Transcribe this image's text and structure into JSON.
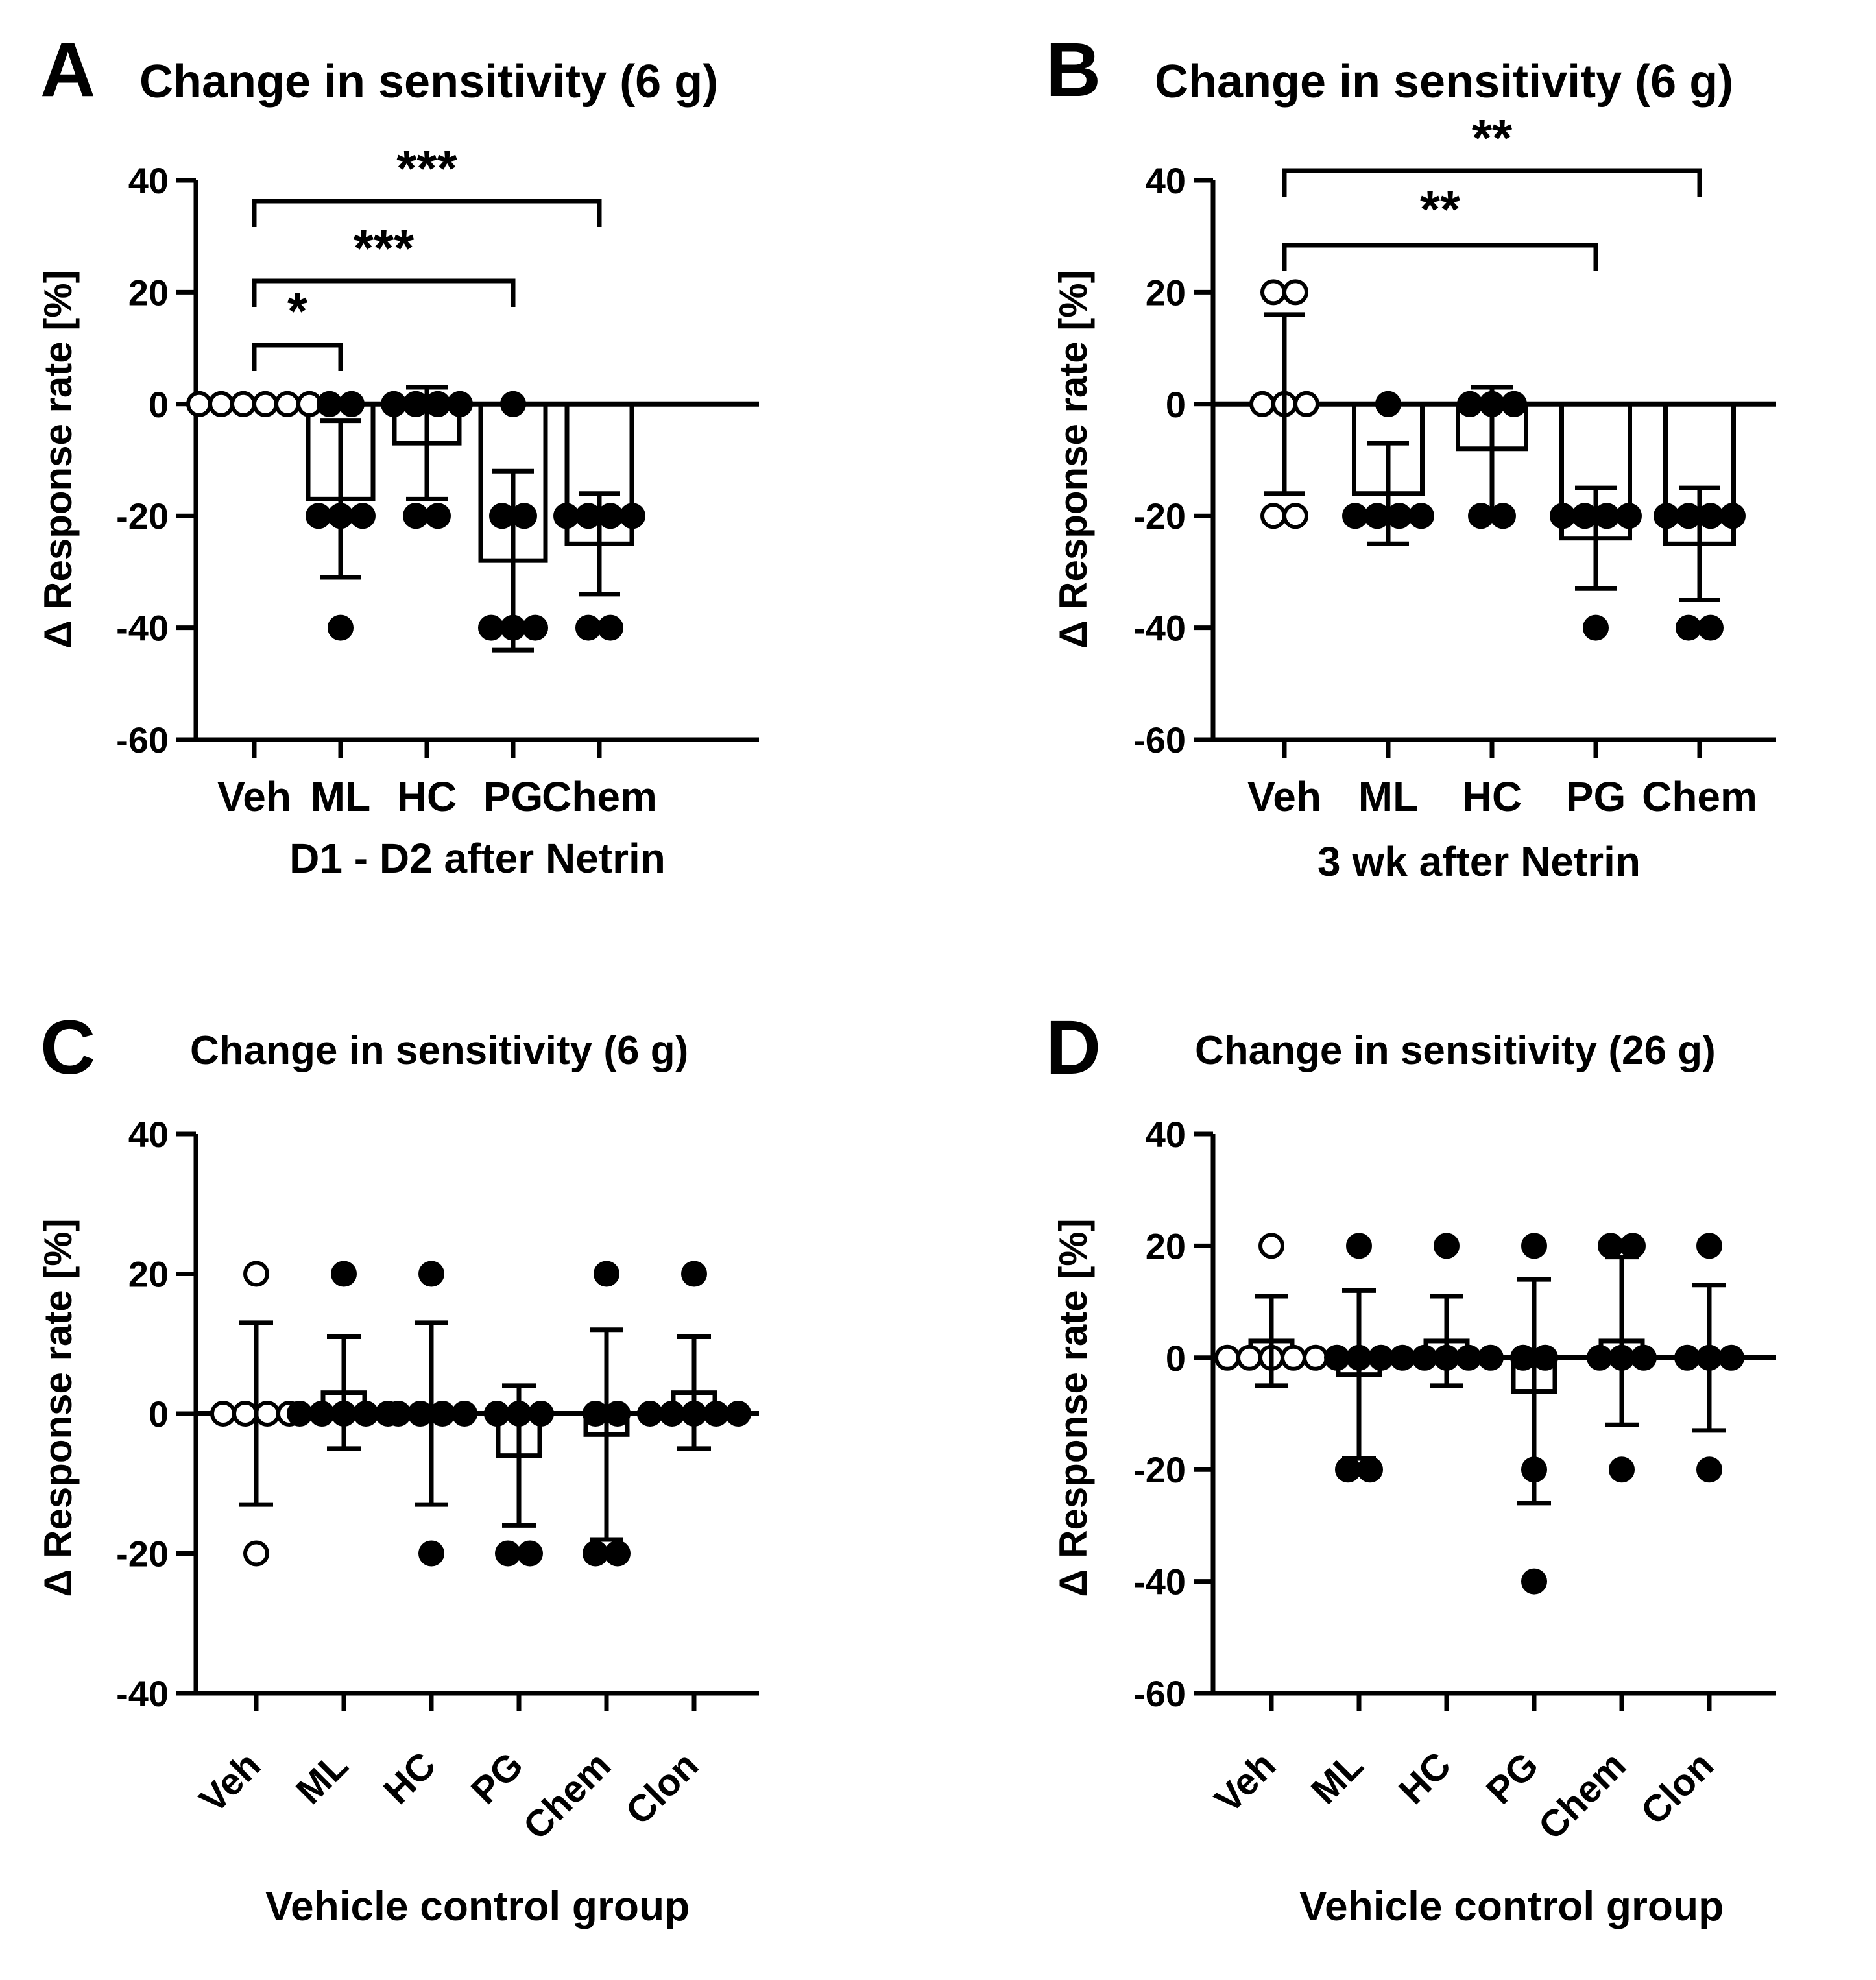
{
  "chart_data": [
    {
      "panel": "A",
      "type": "bar",
      "title": "Change in sensitivity (6 g)",
      "xlabel": "D1 - D2 after Netrin",
      "ylabel": "Δ Response rate [%]",
      "ylim": [
        -60,
        40
      ],
      "yticks": [
        40,
        20,
        0,
        -20,
        -40,
        -60
      ],
      "categories": [
        "Veh",
        "ML",
        "HC",
        "PG",
        "Chem"
      ],
      "rotated_labels": false,
      "means": [
        0,
        -17,
        -7,
        -28,
        -25
      ],
      "sd": [
        0,
        14,
        10,
        16,
        9
      ],
      "points": [
        [
          0,
          0,
          0,
          0,
          0,
          0
        ],
        [
          0,
          0,
          -20,
          -20,
          -20,
          -40
        ],
        [
          0,
          0,
          0,
          0,
          -20,
          -20
        ],
        [
          0,
          -20,
          -20,
          -40,
          -40,
          -40
        ],
        [
          -20,
          -20,
          -20,
          -20,
          -40,
          -40
        ]
      ],
      "open_points": [
        true,
        false,
        false,
        false,
        false
      ],
      "significance": [
        {
          "from": "Veh",
          "to": "ML",
          "label": "*"
        },
        {
          "from": "Veh",
          "to": "PG",
          "label": "***"
        },
        {
          "from": "Veh",
          "to": "Chem",
          "label": "***"
        }
      ]
    },
    {
      "panel": "B",
      "type": "bar",
      "title": "Change in sensitivity (6 g)",
      "xlabel": "3 wk after Netrin",
      "ylabel": "Δ Response rate [%]",
      "ylim": [
        -60,
        40
      ],
      "yticks": [
        40,
        20,
        0,
        -20,
        -40,
        -60
      ],
      "categories": [
        "Veh",
        "ML",
        "HC",
        "PG",
        "Chem"
      ],
      "rotated_labels": false,
      "means": [
        0,
        -16,
        -8,
        -24,
        -25
      ],
      "sd": [
        16,
        9,
        11,
        9,
        10
      ],
      "points": [
        [
          20,
          20,
          0,
          0,
          0,
          -20,
          -20
        ],
        [
          0,
          -20,
          -20,
          -20,
          -20
        ],
        [
          0,
          0,
          0,
          -20,
          -20
        ],
        [
          -20,
          -20,
          -20,
          -20,
          -40
        ],
        [
          -20,
          -20,
          -20,
          -20,
          -40,
          -40
        ]
      ],
      "open_points": [
        true,
        false,
        false,
        false,
        false
      ],
      "significance": [
        {
          "from": "Veh",
          "to": "PG",
          "label": "**"
        },
        {
          "from": "Veh",
          "to": "Chem",
          "label": "**"
        }
      ]
    },
    {
      "panel": "C",
      "type": "bar",
      "title": "Change in sensitivity (6 g)",
      "xlabel": "Vehicle control group",
      "ylabel": "Δ Response rate [%]",
      "ylim": [
        -40,
        40
      ],
      "yticks": [
        40,
        20,
        0,
        -20,
        -40
      ],
      "categories": [
        "Veh",
        "ML",
        "HC",
        "PG",
        "Chem",
        "Clon"
      ],
      "rotated_labels": true,
      "means": [
        0,
        3,
        0,
        -6,
        -3,
        3
      ],
      "sd": [
        13,
        8,
        13,
        10,
        15,
        8
      ],
      "points": [
        [
          20,
          0,
          0,
          0,
          0,
          -20
        ],
        [
          20,
          0,
          0,
          0,
          0,
          0
        ],
        [
          20,
          0,
          0,
          0,
          0,
          -20
        ],
        [
          0,
          0,
          0,
          -20,
          -20
        ],
        [
          20,
          0,
          0,
          -20,
          -20
        ],
        [
          20,
          0,
          0,
          0,
          0,
          0
        ]
      ],
      "open_points": [
        true,
        false,
        false,
        false,
        false,
        false
      ],
      "significance": []
    },
    {
      "panel": "D",
      "type": "bar",
      "title": "Change in sensitivity (26 g)",
      "xlabel": "Vehicle control group",
      "ylabel": "Δ Response rate [%]",
      "ylim": [
        -60,
        40
      ],
      "yticks": [
        40,
        20,
        0,
        -20,
        -40,
        -60
      ],
      "categories": [
        "Veh",
        "ML",
        "HC",
        "PG",
        "Chem",
        "Clon"
      ],
      "rotated_labels": true,
      "means": [
        3,
        -3,
        3,
        -6,
        3,
        0
      ],
      "sd": [
        8,
        15,
        8,
        20,
        15,
        13
      ],
      "points": [
        [
          20,
          0,
          0,
          0,
          0,
          0
        ],
        [
          20,
          0,
          0,
          0,
          -20,
          -20
        ],
        [
          20,
          0,
          0,
          0,
          0,
          0
        ],
        [
          20,
          0,
          0,
          -20,
          -40
        ],
        [
          20,
          20,
          0,
          0,
          0,
          -20
        ],
        [
          20,
          0,
          0,
          0,
          -20
        ]
      ],
      "open_points": [
        true,
        false,
        false,
        false,
        false,
        false
      ],
      "significance": []
    }
  ]
}
